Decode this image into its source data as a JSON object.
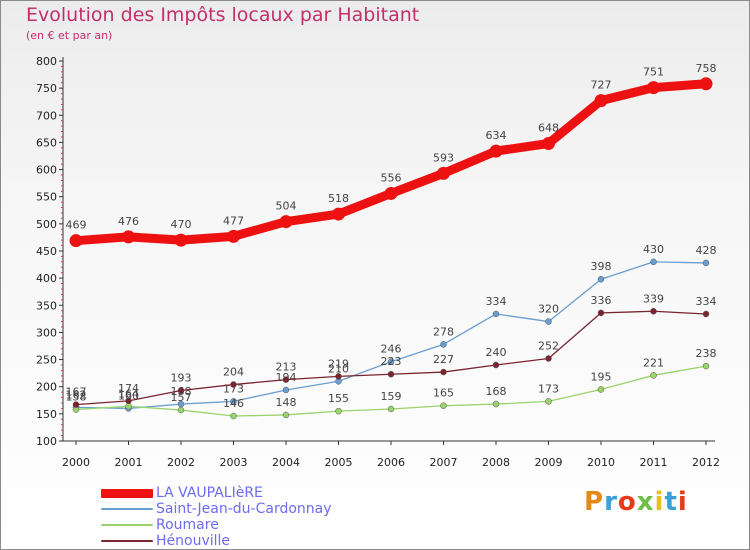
{
  "header": {
    "title": "Evolution des Impôts locaux par Habitant",
    "subtitle": "(en € et par an)"
  },
  "logo": {
    "text": "Proxiti",
    "letter_colors": [
      "#e58a16",
      "#3aa0d8",
      "#e53b1a",
      "#6cc04a",
      "#e8c21a",
      "#3aa0d8",
      "#e53b1a"
    ]
  },
  "chart_data": {
    "type": "line",
    "title": "Evolution des Impôts locaux par Habitant",
    "subtitle": "(en € et par an)",
    "x": [
      "2000",
      "2001",
      "2002",
      "2003",
      "2004",
      "2005",
      "2006",
      "2007",
      "2008",
      "2009",
      "2010",
      "2011",
      "2012"
    ],
    "ylim": [
      100,
      800
    ],
    "yticks": [
      100,
      150,
      200,
      250,
      300,
      350,
      400,
      450,
      500,
      550,
      600,
      650,
      700,
      750,
      800
    ],
    "grid": false,
    "legend_position": "bottom-left",
    "series": [
      {
        "name": "LA VAUPALIèRE",
        "color": "#ee1111",
        "values": [
          469,
          476,
          470,
          477,
          504,
          518,
          556,
          593,
          634,
          648,
          727,
          751,
          758
        ]
      },
      {
        "name": "Saint-Jean-du-Cardonnay",
        "color": "#6a9ed0",
        "values": [
          162,
          160,
          168,
          173,
          194,
          210,
          246,
          278,
          334,
          320,
          398,
          430,
          428
        ]
      },
      {
        "name": "Roumare",
        "color": "#99d36a",
        "values": [
          158,
          164,
          157,
          146,
          148,
          155,
          159,
          165,
          168,
          173,
          195,
          221,
          238
        ]
      },
      {
        "name": "Hénouville",
        "color": "#7a2430",
        "values": [
          167,
          174,
          193,
          204,
          213,
          219,
          223,
          227,
          240,
          252,
          336,
          339,
          334
        ]
      }
    ]
  }
}
